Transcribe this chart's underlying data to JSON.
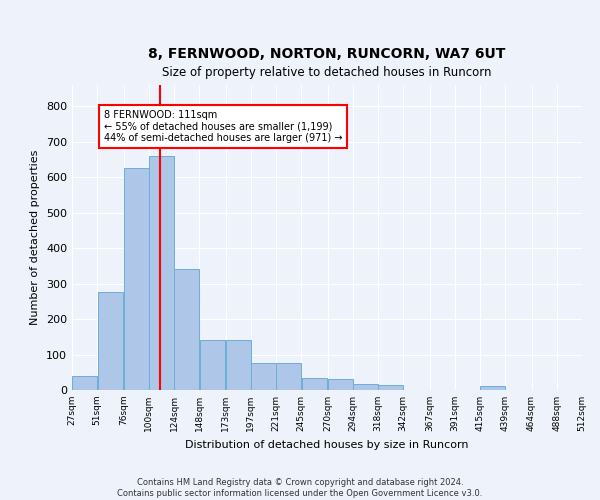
{
  "title": "8, FERNWOOD, NORTON, RUNCORN, WA7 6UT",
  "subtitle": "Size of property relative to detached houses in Runcorn",
  "xlabel": "Distribution of detached houses by size in Runcorn",
  "ylabel": "Number of detached properties",
  "bar_color": "#aec6e8",
  "bar_edge_color": "#6aaed6",
  "annotation_text": "8 FERNWOOD: 111sqm\n← 55% of detached houses are smaller (1,199)\n44% of semi-detached houses are larger (971) →",
  "annotation_box_color": "white",
  "annotation_box_edge_color": "red",
  "vline_x": 111,
  "vline_color": "red",
  "footer_text": "Contains HM Land Registry data © Crown copyright and database right 2024.\nContains public sector information licensed under the Open Government Licence v3.0.",
  "bin_edges": [
    27,
    51,
    76,
    100,
    124,
    148,
    173,
    197,
    221,
    245,
    270,
    294,
    318,
    342,
    367,
    391,
    415,
    439,
    464,
    488,
    512
  ],
  "bar_heights": [
    40,
    275,
    625,
    660,
    340,
    140,
    140,
    75,
    75,
    35,
    30,
    18,
    15,
    0,
    0,
    0,
    10,
    0,
    0,
    0
  ],
  "ylim": [
    0,
    860
  ],
  "xlim": [
    27,
    512
  ],
  "yticks": [
    0,
    100,
    200,
    300,
    400,
    500,
    600,
    700,
    800
  ],
  "background_color": "#eef2fb",
  "grid_color": "white"
}
